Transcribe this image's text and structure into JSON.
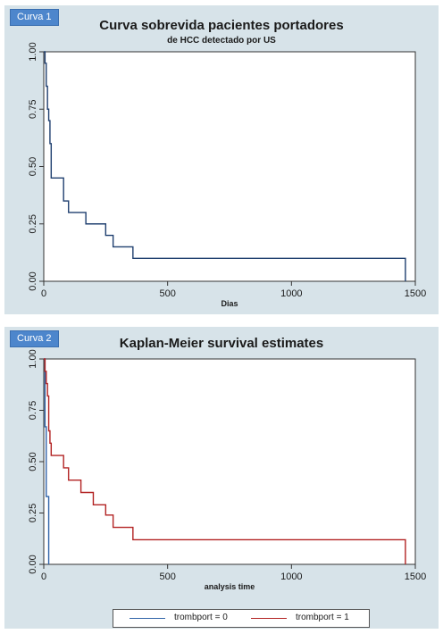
{
  "chart_data": [
    {
      "type": "line",
      "badge": "Curva 1",
      "title": "Curva sobrevida pacientes portadores",
      "subtitle": "de HCC detectado por US",
      "xlabel": "Dias",
      "ylabel": "",
      "xlim": [
        0,
        1500
      ],
      "ylim": [
        0,
        1
      ],
      "xticks": [
        "0",
        "500",
        "1000",
        "1500"
      ],
      "yticks": [
        "0.00",
        "0.25",
        "0.50",
        "0.75",
        "1.00"
      ],
      "grid": false,
      "colors": {
        "line": "#1f3f6f",
        "background": "#ffffff",
        "frame": "#d7e3e9"
      },
      "series": [
        {
          "step": true,
          "x": [
            0,
            5,
            10,
            15,
            20,
            25,
            30,
            80,
            100,
            150,
            170,
            200,
            250,
            280,
            360,
            1460,
            1460
          ],
          "y": [
            1.0,
            0.95,
            0.85,
            0.75,
            0.7,
            0.6,
            0.45,
            0.35,
            0.3,
            0.3,
            0.25,
            0.25,
            0.2,
            0.15,
            0.1,
            0.1,
            0.0
          ]
        }
      ]
    },
    {
      "type": "line",
      "badge": "Curva 2",
      "title": "Kaplan-Meier survival estimates",
      "xlabel": "analysis time",
      "ylabel": "",
      "xlim": [
        0,
        1500
      ],
      "ylim": [
        0,
        1
      ],
      "xticks": [
        "0",
        "500",
        "1000",
        "1500"
      ],
      "yticks": [
        "0.00",
        "0.25",
        "0.50",
        "0.75",
        "1.00"
      ],
      "grid": false,
      "legend": "bottom",
      "colors": {
        "background": "#ffffff",
        "frame": "#d7e3e9"
      },
      "series": [
        {
          "name": "trombport = 0",
          "color": "#2f63a8",
          "step": true,
          "x": [
            0,
            5,
            10,
            15,
            20
          ],
          "y": [
            1.0,
            0.67,
            0.33,
            0.33,
            0.0
          ]
        },
        {
          "name": "trombport = 1",
          "color": "#b22222",
          "step": true,
          "x": [
            0,
            5,
            10,
            15,
            20,
            25,
            30,
            80,
            100,
            150,
            200,
            250,
            280,
            360,
            1460,
            1460
          ],
          "y": [
            1.0,
            0.94,
            0.88,
            0.82,
            0.65,
            0.59,
            0.53,
            0.47,
            0.41,
            0.35,
            0.29,
            0.24,
            0.18,
            0.12,
            0.12,
            0.0
          ]
        }
      ]
    }
  ]
}
